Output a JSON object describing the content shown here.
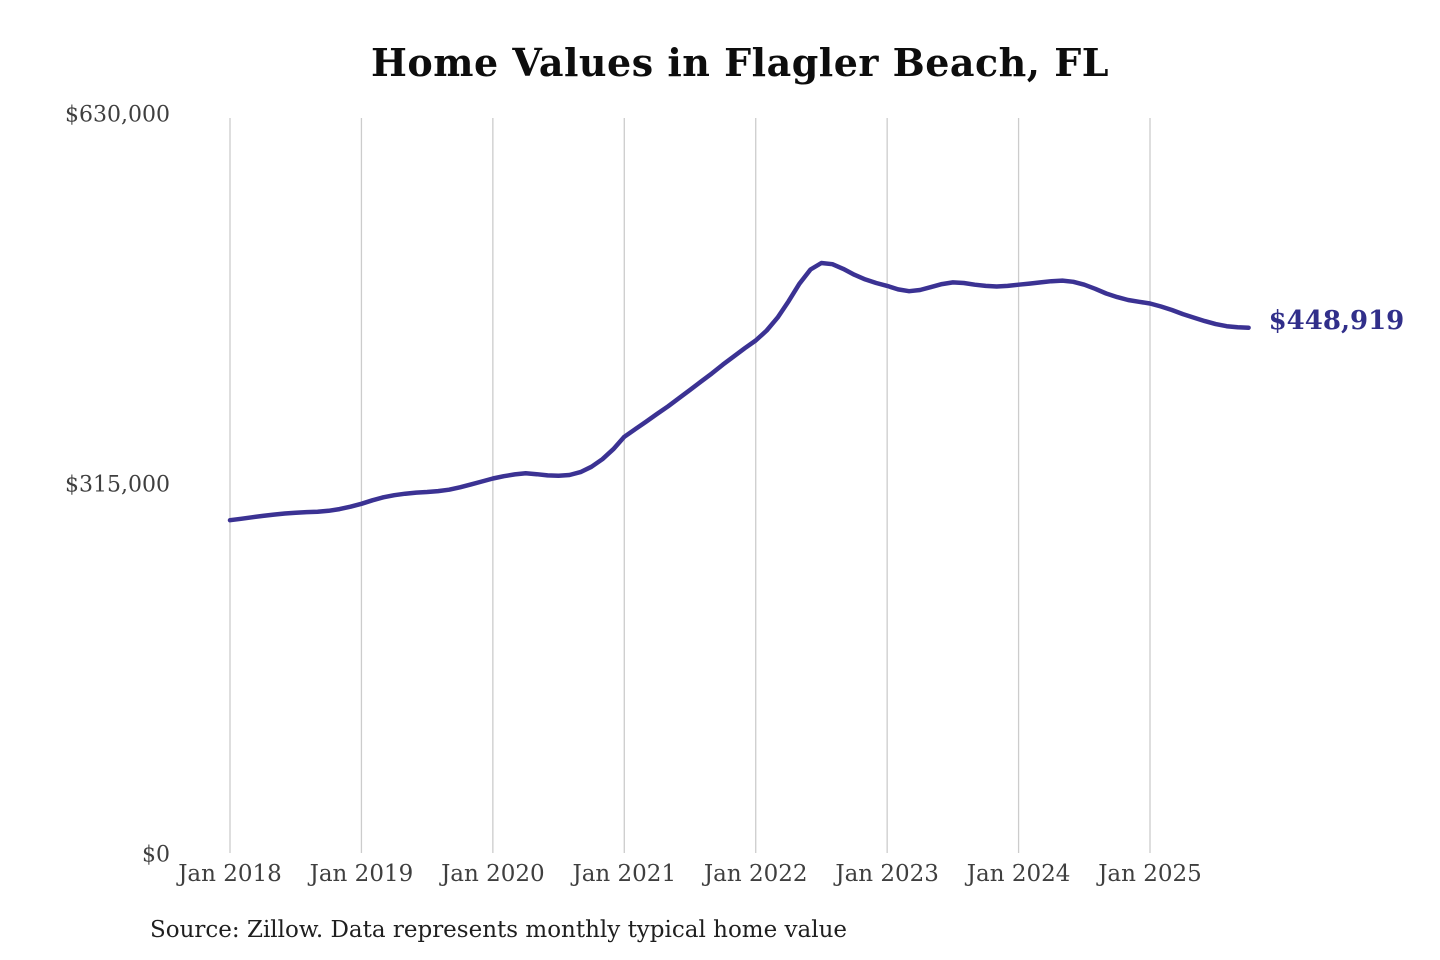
{
  "chart_data": {
    "type": "line",
    "title": "Home Values in Flagler Beach, FL",
    "source_note": "Source: Zillow. Data represents monthly typical home value",
    "end_label": "$448,919",
    "final_value": 448919,
    "line_color": "#3b3293",
    "end_label_color": "#312f8a",
    "gridline_color": "#cccccc",
    "tick_label_color": "#3f3f3f",
    "grid": "vertical-only",
    "legend": "none",
    "ylim": [
      0,
      630000
    ],
    "y_ticks": [
      {
        "label": "$0",
        "value": 0
      },
      {
        "label": "$315,000",
        "value": 315000
      },
      {
        "label": "$630,000",
        "value": 630000
      }
    ],
    "x_tick_labels": [
      "Jan 2018",
      "Jan 2019",
      "Jan 2020",
      "Jan 2021",
      "Jan 2022",
      "Jan 2023",
      "Jan 2024",
      "Jan 2025"
    ],
    "x": {
      "start": "2018-01",
      "step_months": 1,
      "end": "2025-10"
    },
    "series": [
      {
        "name": "Monthly typical home value",
        "values": [
          285000,
          286200,
          287500,
          288700,
          289800,
          290700,
          291400,
          291900,
          292300,
          293000,
          294500,
          296500,
          299000,
          302000,
          304500,
          306300,
          307600,
          308500,
          309000,
          309800,
          311000,
          313000,
          315500,
          318000,
          320500,
          322500,
          324000,
          325000,
          324200,
          323200,
          322800,
          323500,
          326000,
          330500,
          337000,
          345500,
          356000,
          362500,
          369000,
          375500,
          382000,
          389000,
          396000,
          403000,
          410000,
          417500,
          424500,
          431500,
          438000,
          446500,
          457500,
          471500,
          486500,
          498500,
          504000,
          503000,
          499000,
          494000,
          490000,
          487000,
          484500,
          481500,
          480000,
          481000,
          483500,
          486000,
          487500,
          487000,
          485500,
          484500,
          484000,
          484500,
          485500,
          486500,
          487500,
          488500,
          489000,
          488000,
          485500,
          482000,
          478000,
          475000,
          472500,
          471000,
          469500,
          467000,
          464000,
          460500,
          457500,
          454500,
          452000,
          450200,
          449300,
          448919
        ]
      }
    ]
  }
}
